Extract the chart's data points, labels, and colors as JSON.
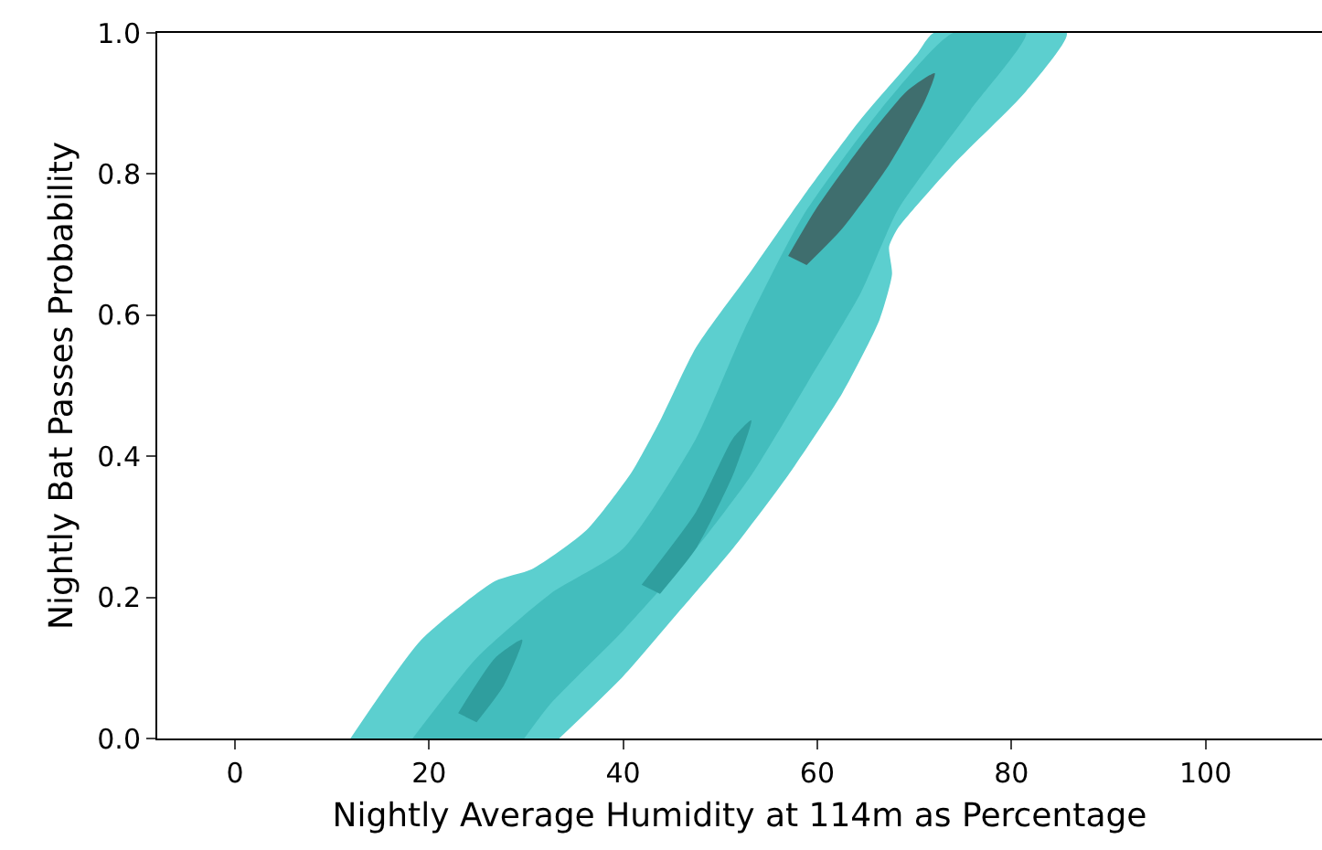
{
  "chart_data": {
    "type": "area",
    "xlabel": "Nightly Average Humidity at 114m as Percentage",
    "ylabel": "Nightly Bat Passes Probability",
    "xlim": [
      -8,
      112
    ],
    "ylim": [
      0,
      1.0
    ],
    "xticks": [
      0,
      20,
      40,
      60,
      80,
      100
    ],
    "yticks": [
      {
        "value": 0,
        "label": "0.0"
      },
      0.2,
      0.4,
      0.6,
      0.8,
      {
        "value": 1,
        "label": "1.0"
      }
    ],
    "series": [
      {
        "color": "#5ccfcf",
        "x": [
          11.9,
          19.2,
          26.8,
          30.6,
          36.2,
          40.9,
          43.8,
          47.5,
          53.2,
          58.9,
          64.5,
          70.2,
          72,
          85.7,
          81.5,
          74,
          68.3,
          67.4,
          67.7,
          66.4,
          62.6,
          57,
          51.3,
          45.7,
          40,
          33.4
        ],
        "values": [
          0,
          0.14,
          0.223,
          0.24,
          0.295,
          0.378,
          0.45,
          0.554,
          0.663,
          0.775,
          0.878,
          0.969,
          1.0,
          1.0,
          0.917,
          0.813,
          0.723,
          0.697,
          0.658,
          0.593,
          0.49,
          0.373,
          0.269,
          0.179,
          0.088,
          0
        ]
      },
      {
        "color": "#43bdbd",
        "x": [
          18.3,
          24.9,
          32.5,
          40,
          47.5,
          52.5,
          58.5,
          66.5,
          74,
          81.5,
          75.8,
          68.3,
          64.5,
          58.9,
          53.2,
          47.5,
          40,
          32.5,
          29.8
        ],
        "values": [
          0,
          0.114,
          0.205,
          0.269,
          0.425,
          0.58,
          0.74,
          0.891,
          1,
          1,
          0.891,
          0.749,
          0.632,
          0.502,
          0.373,
          0.269,
          0.153,
          0.049,
          0
        ]
      },
      {
        "color": "#2f9e9e",
        "x": [
          41.9,
          47.5,
          51.3,
          53.2,
          51.3,
          47.5,
          43.8
        ],
        "values": [
          0.218,
          0.321,
          0.425,
          0.451,
          0.373,
          0.269,
          0.205
        ]
      },
      {
        "color": "#2f9e9e",
        "x": [
          23,
          26.8,
          29.6,
          27.7,
          24.9
        ],
        "values": [
          0.036,
          0.114,
          0.14,
          0.075,
          0.023
        ]
      },
      {
        "color": "#3f6e6e",
        "x": [
          57.0,
          59.8,
          64.5,
          69.2,
          72.1,
          71.1,
          67.4,
          62.6,
          58.9
        ],
        "values": [
          0.684,
          0.749,
          0.839,
          0.917,
          0.943,
          0.904,
          0.813,
          0.723,
          0.671
        ]
      }
    ]
  }
}
